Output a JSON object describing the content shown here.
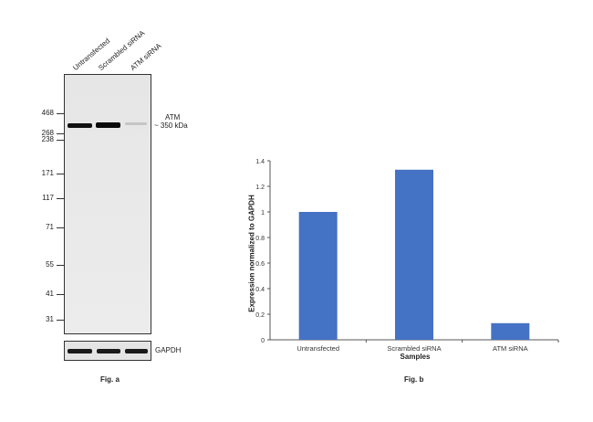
{
  "blot": {
    "lanes": [
      "Untransfected",
      "Scrambled siRNA",
      "ATM siRNA"
    ],
    "markers": [
      "468",
      "268",
      "238",
      "171",
      "117",
      "71",
      "55",
      "41",
      "31"
    ],
    "target_name": "ATM",
    "target_size": "~ 350 kDa",
    "loading_control": "GAPDH",
    "band_intensity": [
      1.0,
      1.0,
      0.3
    ],
    "fig_label": "Fig. a"
  },
  "chart_data": {
    "type": "bar",
    "categories": [
      "Untransfected",
      "Scrambled siRNA",
      "ATM siRNA"
    ],
    "values": [
      1.0,
      1.33,
      0.13
    ],
    "xlabel": "Samples",
    "ylabel": "Expression normalized to GAPDH",
    "ylim": [
      0,
      1.4
    ],
    "yticks": [
      "0",
      "0.2",
      "0.4",
      "0.6",
      "0.8",
      "1",
      "1.2",
      "1.4"
    ],
    "bar_color": "#4472c4",
    "fig_label": "Fig. b"
  }
}
